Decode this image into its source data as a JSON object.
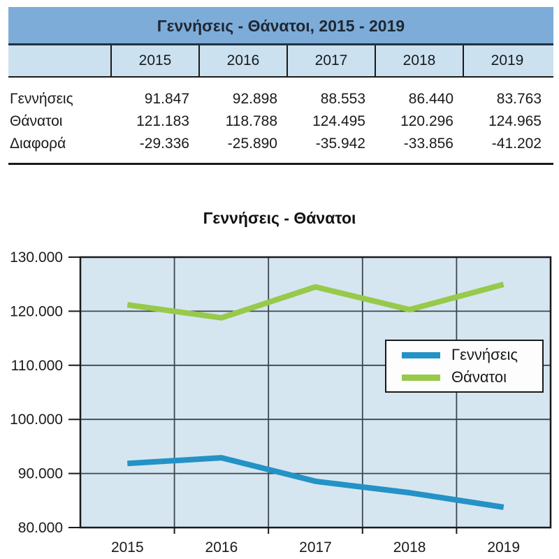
{
  "table": {
    "title": "Γεννήσεις - Θάνατοι, 2015 - 2019",
    "years": [
      "2015",
      "2016",
      "2017",
      "2018",
      "2019"
    ],
    "rows": [
      {
        "label": "Γεννήσεις",
        "values": [
          "91.847",
          "92.898",
          "88.553",
          "86.440",
          "83.763"
        ]
      },
      {
        "label": "Θάνατοι",
        "values": [
          "121.183",
          "118.788",
          "124.495",
          "120.296",
          "124.965"
        ]
      },
      {
        "label": "Διαφορά",
        "values": [
          "-29.336",
          "-25.890",
          "-35.942",
          "-33.856",
          "-41.202"
        ]
      }
    ]
  },
  "chart_data": {
    "type": "line",
    "title": "Γεννήσεις - Θάνατοι",
    "categories": [
      "2015",
      "2016",
      "2017",
      "2018",
      "2019"
    ],
    "series": [
      {
        "name": "Γεννήσεις",
        "color": "#2492c6",
        "values": [
          91847,
          92898,
          88553,
          86440,
          83763
        ]
      },
      {
        "name": "Θάνατοι",
        "color": "#97c94b",
        "values": [
          121183,
          118788,
          124495,
          120296,
          124965
        ]
      }
    ],
    "xlabel": "",
    "ylabel": "",
    "ylim": [
      80000,
      130000
    ],
    "y_tick_step": 10000,
    "y_tick_labels": [
      "80.000",
      "90.000",
      "100.000",
      "110.000",
      "120.000",
      "130.000"
    ],
    "grid": true,
    "legend_position": "center-right",
    "plot_bg": "#d5e6f1",
    "grid_color": "#3c4650",
    "axis_color": "#1a1a1a",
    "text_color": "#1a1a1a",
    "line_width": 8
  }
}
